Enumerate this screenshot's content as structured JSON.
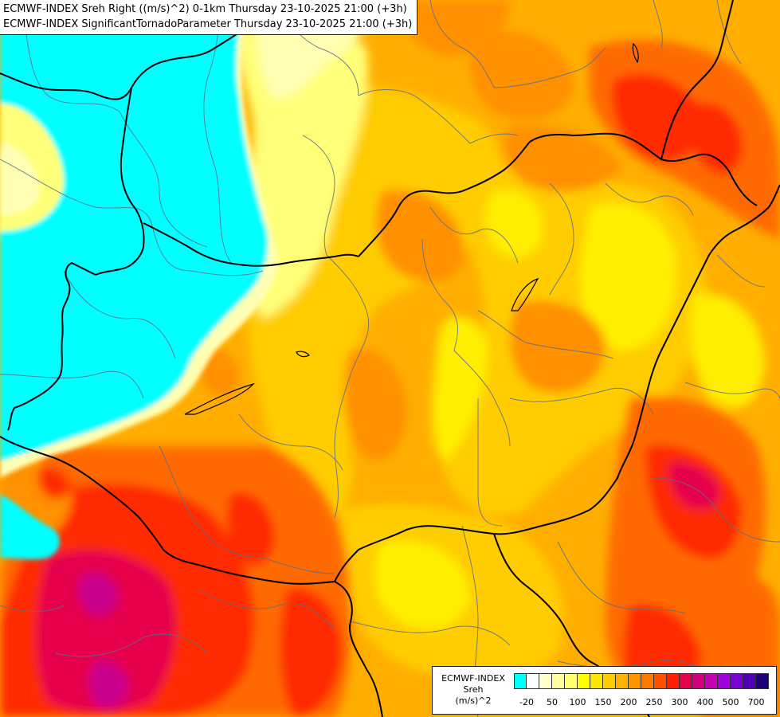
{
  "header": {
    "line1": "ECMWF-INDEX Sreh Right ((m/s)^2) 0-1km Thursday 23-10-2025 21:00 (+3h)",
    "line2": "ECMWF-INDEX SignificantTornadoParameter Thursday 23-10-2025 21:00 (+3h)"
  },
  "legend": {
    "title_line1": "ECMWF-INDEX",
    "title_line2": "Sreh",
    "title_line3": "(m/s)^2",
    "colors": [
      "#00ffff",
      "#ffffff",
      "#ffffd0",
      "#ffffa0",
      "#ffff70",
      "#ffff00",
      "#ffe600",
      "#ffcc00",
      "#ffb400",
      "#ff9600",
      "#ff7800",
      "#ff5000",
      "#ff1e00",
      "#e6004b",
      "#d2007d",
      "#c800b4",
      "#a000dc",
      "#7800d2",
      "#5000b4",
      "#1e0078"
    ],
    "ticks": [
      "-20",
      "50",
      "100",
      "150",
      "200",
      "250",
      "300",
      "400",
      "500",
      "700"
    ]
  },
  "map": {
    "palette": {
      "cyan": "#00ffff",
      "pale": "#ffffb4",
      "light_yellow": "#ffff78",
      "yellow": "#ffee00",
      "gold": "#ffcc00",
      "amber": "#ffae00",
      "orange": "#ff9000",
      "dark_orange": "#ff6a00",
      "red": "#ff2a00",
      "crimson": "#e6004b",
      "magenta": "#c8008c",
      "border": "#000000",
      "region_border": "#5a6e8c"
    }
  }
}
